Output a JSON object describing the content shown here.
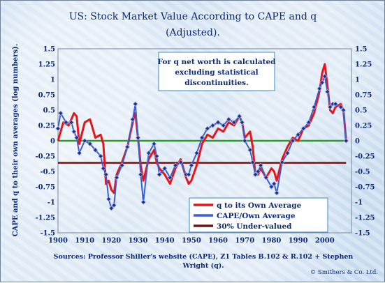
{
  "chart_data": {
    "type": "line",
    "title_line1": "US: Stock Market Value According to CAPE and q",
    "title_line2": "(Adjusted).",
    "ylabel": "CAPE and q  to their own averages (log numbers).",
    "note_line1": "For q  net worth is calculated",
    "note_line2": "excluding statistical",
    "note_line3": "discontinuities.",
    "source_line1": "Sources: Professor Shiller's website (CAPE), Z1 Tables B.102 & R.102 + Stephen",
    "source_line2": "Wright (q).",
    "copyright": "© Smithers & Co. Ltd.",
    "xlim": [
      1900,
      2010
    ],
    "ylim": [
      -1.5,
      1.5
    ],
    "x_ticks": [
      "1900",
      "1910",
      "1920",
      "1930",
      "1940",
      "1950",
      "1960",
      "1970",
      "1980",
      "1990",
      "2000"
    ],
    "y_ticks": [
      "1.5",
      "1.25",
      "1",
      "0.75",
      "0.5",
      "0.25",
      "0",
      "-0.25",
      "-0.5",
      "-0.75",
      "-1",
      "-1.25",
      "-1.5"
    ],
    "legend_position": "bottom-right",
    "series": [
      {
        "name": "q to its Own Average",
        "color": "#e8141b",
        "x": [
          1900,
          1902,
          1904,
          1906,
          1907,
          1908,
          1910,
          1912,
          1914,
          1916,
          1917,
          1918,
          1919,
          1920,
          1921,
          1922,
          1924,
          1926,
          1928,
          1929,
          1930,
          1931,
          1932,
          1934,
          1936,
          1937,
          1938,
          1940,
          1942,
          1944,
          1946,
          1948,
          1949,
          1950,
          1952,
          1954,
          1956,
          1958,
          1960,
          1962,
          1964,
          1966,
          1968,
          1969,
          1970,
          1972,
          1973,
          1974,
          1975,
          1976,
          1978,
          1980,
          1981,
          1982,
          1984,
          1986,
          1988,
          1990,
          1992,
          1994,
          1996,
          1998,
          1999,
          2000,
          2001,
          2002,
          2003,
          2004,
          2006,
          2007,
          2008
        ],
        "y": [
          0.0,
          0.3,
          0.25,
          0.45,
          0.4,
          -0.05,
          0.3,
          0.35,
          0.05,
          0.1,
          -0.05,
          -0.7,
          -0.65,
          -0.8,
          -0.85,
          -0.55,
          -0.35,
          -0.1,
          0.3,
          0.45,
          0.05,
          -0.4,
          -0.65,
          -0.3,
          -0.15,
          -0.35,
          -0.45,
          -0.55,
          -0.7,
          -0.45,
          -0.3,
          -0.6,
          -0.7,
          -0.65,
          -0.4,
          -0.05,
          0.1,
          0.05,
          0.2,
          0.15,
          0.3,
          0.25,
          0.4,
          0.3,
          0.05,
          0.15,
          -0.1,
          -0.55,
          -0.55,
          -0.45,
          -0.6,
          -0.45,
          -0.5,
          -0.65,
          -0.3,
          -0.1,
          0.05,
          0.0,
          0.2,
          0.25,
          0.45,
          0.8,
          1.1,
          1.25,
          0.9,
          0.5,
          0.45,
          0.55,
          0.6,
          0.5,
          0.0
        ]
      },
      {
        "name": "CAPE/Own Average",
        "color": "#3a5fd0",
        "x": [
          1900,
          1901,
          1903,
          1905,
          1906,
          1907,
          1908,
          1910,
          1912,
          1914,
          1916,
          1917,
          1918,
          1919,
          1920,
          1921,
          1922,
          1924,
          1926,
          1928,
          1929,
          1930,
          1931,
          1932,
          1934,
          1936,
          1937,
          1938,
          1940,
          1942,
          1944,
          1946,
          1948,
          1949,
          1950,
          1952,
          1954,
          1956,
          1958,
          1960,
          1962,
          1964,
          1966,
          1968,
          1969,
          1970,
          1972,
          1973,
          1974,
          1975,
          1976,
          1978,
          1980,
          1981,
          1982,
          1984,
          1986,
          1988,
          1990,
          1992,
          1994,
          1996,
          1998,
          1999,
          2000,
          2001,
          2002,
          2003,
          2004,
          2006,
          2007,
          2008
        ],
        "y": [
          0.2,
          0.45,
          0.3,
          0.3,
          0.15,
          0.05,
          -0.2,
          0.0,
          -0.05,
          -0.15,
          -0.25,
          -0.45,
          -0.55,
          -0.95,
          -1.1,
          -1.05,
          -0.6,
          -0.4,
          -0.1,
          0.35,
          0.6,
          0.05,
          -0.55,
          -1.0,
          -0.2,
          -0.05,
          -0.25,
          -0.55,
          -0.45,
          -0.6,
          -0.4,
          -0.35,
          -0.55,
          -0.55,
          -0.4,
          -0.2,
          0.05,
          0.2,
          0.25,
          0.3,
          0.25,
          0.35,
          0.3,
          0.4,
          0.3,
          0.0,
          -0.15,
          -0.35,
          -0.55,
          -0.5,
          -0.4,
          -0.6,
          -0.75,
          -0.7,
          -0.85,
          -0.35,
          -0.2,
          0.0,
          0.1,
          0.2,
          0.3,
          0.55,
          0.85,
          0.95,
          1.05,
          0.8,
          0.55,
          0.6,
          0.6,
          0.55,
          0.5,
          0.0
        ]
      },
      {
        "name": "30% Under-valued",
        "color": "#6b1412",
        "x": [
          1900,
          2008
        ],
        "y": [
          -0.36,
          -0.36
        ]
      }
    ],
    "zero_line_color": "#2f9a2f"
  }
}
